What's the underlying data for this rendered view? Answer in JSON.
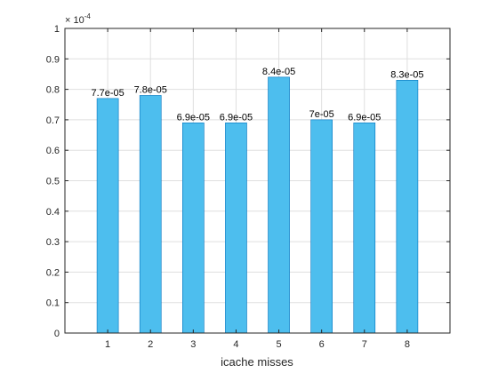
{
  "chart_data": {
    "type": "bar",
    "categories": [
      "1",
      "2",
      "3",
      "4",
      "5",
      "6",
      "7",
      "8"
    ],
    "values": [
      7.7e-05,
      7.8e-05,
      6.9e-05,
      6.9e-05,
      8.4e-05,
      7e-05,
      6.9e-05,
      8.3e-05
    ],
    "value_labels": [
      "7.7e-05",
      "7.8e-05",
      "6.9e-05",
      "6.9e-05",
      "8.4e-05",
      "7e-05",
      "6.9e-05",
      "8.3e-05"
    ],
    "xlabel": "icache misses",
    "ylabel": "",
    "ylim": [
      0,
      0.0001
    ],
    "y_tick_labels": [
      "0",
      "0.1",
      "0.2",
      "0.3",
      "0.4",
      "0.5",
      "0.6",
      "0.7",
      "0.8",
      "0.9",
      "1"
    ],
    "y_scale_base": "× 10",
    "y_scale_exponent": "-4",
    "grid": true,
    "bar_color": "#4DBEEE",
    "bar_edge_color": "#0072BD"
  }
}
